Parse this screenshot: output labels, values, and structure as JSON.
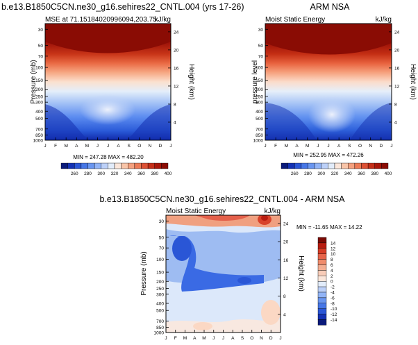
{
  "chart_data": [
    {
      "type": "heatmap",
      "id": "panel-model",
      "suptitle": "b.e13.B1850C5CN.ne30_g16.sehires22_CNTL.004 (yrs 17-26)",
      "left_title": "MSE at 71.15184020996094,203.75",
      "right_title": "kJ/kg",
      "ylabel": "Pressure (mb)",
      "ylabel_right": "Height (km)",
      "xticks": [
        "J",
        "F",
        "M",
        "A",
        "M",
        "J",
        "J",
        "A",
        "S",
        "O",
        "N",
        "D",
        "J"
      ],
      "pressure_ticks": [
        "30",
        "50",
        "70",
        "100",
        "150",
        "200",
        "250",
        "300",
        "400",
        "500",
        "700",
        "850",
        "1000"
      ],
      "height_ticks": [
        "24",
        "20",
        "16",
        "12",
        "8",
        "4"
      ],
      "ylim": [
        1000,
        25
      ],
      "min": 247.28,
      "max": 482.2,
      "minmax_label": "MIN = 247.28 MAX = 482.20",
      "colorbar_ticks": [
        "260",
        "280",
        "300",
        "320",
        "340",
        "360",
        "380",
        "400"
      ]
    },
    {
      "type": "heatmap",
      "id": "panel-obs",
      "left_title": "Moist Static Energy",
      "center_title": "ARM NSA",
      "right_title": "kJ/kg",
      "ylabel": "pressure level",
      "ylabel_right": "Height (km)",
      "xticks": [
        "J",
        "F",
        "M",
        "A",
        "M",
        "J",
        "J",
        "A",
        "S",
        "O",
        "N",
        "D",
        "J"
      ],
      "pressure_ticks": [
        "30",
        "50",
        "70",
        "100",
        "150",
        "200",
        "250",
        "300",
        "400",
        "500",
        "700",
        "850",
        "1000"
      ],
      "height_ticks": [
        "24",
        "20",
        "16",
        "12",
        "8",
        "4"
      ],
      "ylim": [
        1000,
        25
      ],
      "min": 252.95,
      "max": 472.26,
      "minmax_label": "MIN = 252.95 MAX = 472.26",
      "colorbar_ticks": [
        "260",
        "280",
        "300",
        "320",
        "340",
        "360",
        "380",
        "400"
      ]
    },
    {
      "type": "heatmap",
      "id": "panel-diff",
      "suptitle": "b.e13.B1850C5CN.ne30_g16.sehires22_CNTL.004 - ARM NSA",
      "left_title": "Moist Static Energy",
      "right_title": "kJ/kg",
      "ylabel": "Pressure (mb)",
      "ylabel_right": "Height (km)",
      "xticks": [
        "J",
        "F",
        "M",
        "A",
        "M",
        "J",
        "J",
        "A",
        "S",
        "O",
        "N",
        "D",
        "J"
      ],
      "pressure_ticks": [
        "30",
        "50",
        "70",
        "100",
        "150",
        "200",
        "250",
        "300",
        "400",
        "500",
        "700",
        "850",
        "1000"
      ],
      "height_ticks": [
        "24",
        "20",
        "16",
        "12",
        "8",
        "4"
      ],
      "ylim": [
        1000,
        25
      ],
      "min": -11.65,
      "max": 14.22,
      "minmax_label": "MIN = -11.65 MAX =  14.22",
      "colorbar_ticks": [
        "14",
        "12",
        "10",
        "8",
        "6",
        "4",
        "2",
        "0",
        "-2",
        "-4",
        "-6",
        "-8",
        "-10",
        "-12",
        "-14"
      ]
    }
  ]
}
